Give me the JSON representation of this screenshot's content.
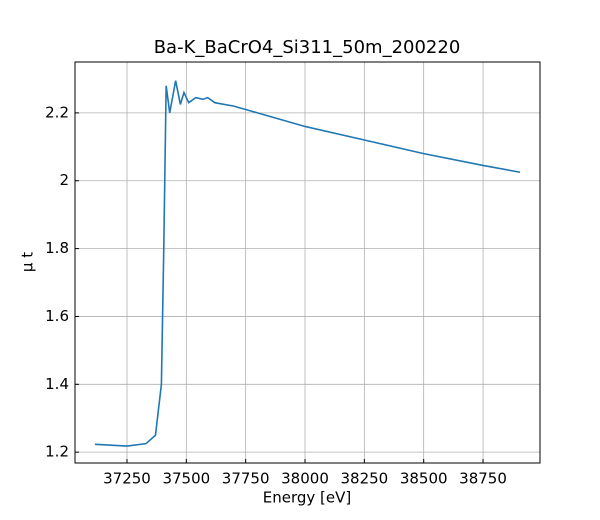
{
  "chart_data": {
    "type": "line",
    "title": "Ba-K_BaCrO4_Si311_50m_200220",
    "xlabel": "Energy [eV]",
    "ylabel": "μ t",
    "x": [
      37115,
      37250,
      37330,
      37370,
      37395,
      37405,
      37415,
      37430,
      37455,
      37475,
      37490,
      37510,
      37540,
      37570,
      37590,
      37620,
      37700,
      37800,
      38000,
      38250,
      38500,
      38750,
      38906
    ],
    "series": [
      {
        "name": "Ba-K_BaCrO4_Si311_50m_200220",
        "color": "#1f77b4",
        "values": [
          1.223,
          1.218,
          1.225,
          1.25,
          1.4,
          1.8,
          2.28,
          2.2,
          2.295,
          2.225,
          2.26,
          2.23,
          2.245,
          2.24,
          2.245,
          2.23,
          2.22,
          2.2,
          2.16,
          2.12,
          2.08,
          2.045,
          2.025
        ]
      }
    ],
    "xlim": [
      37031,
      38990
    ],
    "ylim": [
      1.168,
      2.35
    ],
    "xticks": [
      37250,
      37500,
      37750,
      38000,
      38250,
      38500,
      38750
    ],
    "yticks": [
      1.2,
      1.4,
      1.6,
      1.8,
      2.0,
      2.2
    ],
    "grid": true
  }
}
